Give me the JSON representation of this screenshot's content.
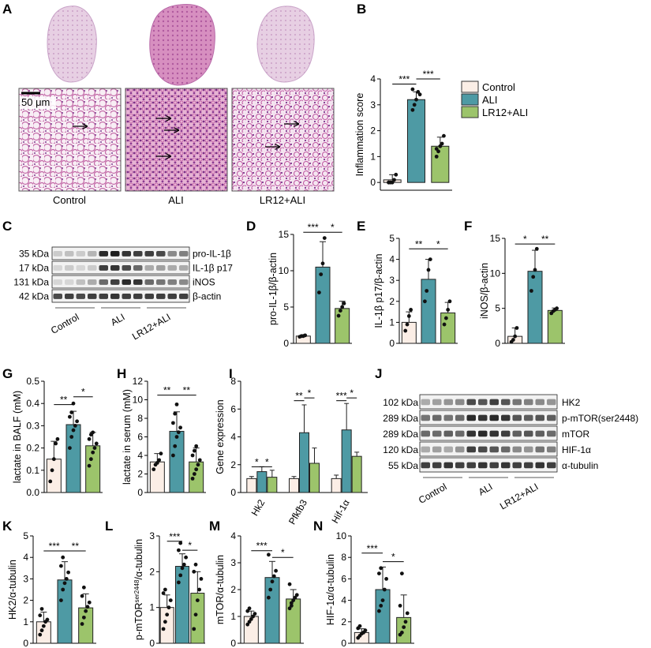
{
  "colors": {
    "control": "#fbeee6",
    "ali": "#4e9aa4",
    "lr12": "#9cc46b",
    "stroke": "#333333"
  },
  "panel_letters": [
    "A",
    "B",
    "C",
    "D",
    "E",
    "F",
    "G",
    "H",
    "I",
    "J",
    "K",
    "L",
    "M",
    "N"
  ],
  "histology": {
    "scale_label": "50 μm",
    "group_labels": [
      "Control",
      "ALI",
      "LR12+ALI"
    ]
  },
  "legend": {
    "items": [
      "Control",
      "ALI",
      "LR12+ALI"
    ]
  },
  "western_c": {
    "kda": [
      "35 kDa",
      "17 kDa",
      "131 kDa",
      "42 kDa"
    ],
    "proteins": [
      "pro-IL-1β",
      "IL-1β p17",
      "iNOS",
      "β-actin"
    ],
    "groups": [
      "Control",
      "ALI",
      "LR12+ALI"
    ]
  },
  "western_j": {
    "kda": [
      "102 kDa",
      "289 kDa",
      "289 kDa",
      "120 kDa",
      "55 kDa"
    ],
    "proteins": [
      "HK2",
      "p-mTOR(ser2448)",
      "mTOR",
      "HIF-1α",
      "α-tubulin"
    ],
    "groups": [
      "Control",
      "ALI",
      "LR12+ALI"
    ]
  },
  "chart_data": [
    {
      "id": "B",
      "type": "bar",
      "ylabel": "Inflammation score",
      "ylim": [
        -0.3,
        4
      ],
      "ticks": [
        0,
        1,
        2,
        3,
        4
      ],
      "categories": [
        "Control",
        "ALI",
        "LR12+ALI"
      ],
      "values": [
        0.1,
        3.2,
        1.4
      ],
      "errors": [
        0.2,
        0.3,
        0.35
      ],
      "points": [
        [
          0,
          0,
          0,
          0.1,
          0.3,
          0
        ],
        [
          2.8,
          3.0,
          3.2,
          3.5,
          3.4,
          3.6
        ],
        [
          1.0,
          1.2,
          1.4,
          1.5,
          1.8,
          1.3
        ]
      ],
      "significance": [
        {
          "from": 0,
          "to": 1,
          "label": "***",
          "level": 3.8
        },
        {
          "from": 1,
          "to": 2,
          "label": "***",
          "level": 4.0
        }
      ]
    },
    {
      "id": "D",
      "type": "bar",
      "ylabel": "pro-IL-1β/β-actin",
      "ylim": [
        0,
        15
      ],
      "ticks": [
        0,
        5,
        10,
        15
      ],
      "categories": [
        "Control",
        "ALI",
        "LR12+ALI"
      ],
      "values": [
        1.0,
        10.5,
        4.8
      ],
      "errors": [
        0.15,
        3.5,
        1.0
      ],
      "points": [
        [
          0.9,
          1.0,
          1.0,
          1.1
        ],
        [
          7.0,
          9.5,
          11.0,
          14.5
        ],
        [
          3.8,
          4.5,
          5.0,
          5.5
        ]
      ],
      "significance": [
        {
          "from": 0,
          "to": 1,
          "label": "***",
          "level": 15.3
        },
        {
          "from": 1,
          "to": 2,
          "label": "*",
          "level": 15.3
        }
      ]
    },
    {
      "id": "E",
      "type": "bar",
      "ylabel": "IL-1β p17/β-actin",
      "ylim": [
        0,
        5
      ],
      "ticks": [
        0,
        1,
        2,
        3,
        4,
        5
      ],
      "categories": [
        "Control",
        "ALI",
        "LR12+ALI"
      ],
      "values": [
        1.0,
        3.05,
        1.45
      ],
      "errors": [
        0.5,
        0.95,
        0.5
      ],
      "points": [
        [
          0.6,
          0.9,
          1.3,
          1.6
        ],
        [
          2.0,
          2.5,
          3.5,
          4.0
        ],
        [
          0.9,
          1.2,
          1.6,
          2.0
        ]
      ],
      "significance": [
        {
          "from": 0,
          "to": 1,
          "label": "**",
          "level": 4.5
        },
        {
          "from": 1,
          "to": 2,
          "label": "*",
          "level": 4.5
        }
      ]
    },
    {
      "id": "F",
      "type": "bar",
      "ylabel": "iNOS/β-actin",
      "ylim": [
        0,
        15
      ],
      "ticks": [
        0,
        5,
        10,
        15
      ],
      "categories": [
        "Control",
        "ALI",
        "LR12+ALI"
      ],
      "values": [
        1.0,
        10.3,
        4.7
      ],
      "errors": [
        1.2,
        3.0,
        0.35
      ],
      "points": [
        [
          0.2,
          0.5,
          1.0,
          2.2
        ],
        [
          7.5,
          9.5,
          10.5,
          13.5
        ],
        [
          4.3,
          4.6,
          4.8,
          5.0
        ]
      ],
      "significance": [
        {
          "from": 0,
          "to": 1,
          "label": "*",
          "level": 14.2
        },
        {
          "from": 1,
          "to": 2,
          "label": "**",
          "level": 14.2
        }
      ]
    },
    {
      "id": "G",
      "type": "bar",
      "ylabel": "lactate in BALF (mM)",
      "ylim": [
        0,
        0.5
      ],
      "ticks": [
        0.0,
        0.1,
        0.2,
        0.3,
        0.4,
        0.5
      ],
      "categories": [
        "Control",
        "ALI",
        "LR12+ALI"
      ],
      "values": [
        0.15,
        0.305,
        0.21
      ],
      "errors": [
        0.08,
        0.06,
        0.06
      ],
      "points": [
        [
          0.05,
          0.1,
          0.15,
          0.22,
          0.24
        ],
        [
          0.2,
          0.25,
          0.28,
          0.3,
          0.32,
          0.34,
          0.36,
          0.4
        ],
        [
          0.12,
          0.15,
          0.18,
          0.2,
          0.22,
          0.24,
          0.26,
          0.27
        ]
      ],
      "significance": [
        {
          "from": 0,
          "to": 1,
          "label": "**",
          "level": 0.395
        },
        {
          "from": 1,
          "to": 2,
          "label": "*",
          "level": 0.43
        }
      ]
    },
    {
      "id": "H",
      "type": "bar",
      "ylabel": "lactate in serum (mM)",
      "ylim": [
        0,
        12
      ],
      "ticks": [
        0,
        2,
        4,
        6,
        8,
        10,
        12
      ],
      "categories": [
        "Control",
        "ALI",
        "LR12+ALI"
      ],
      "values": [
        3.3,
        6.6,
        3.3
      ],
      "errors": [
        0.9,
        2.1,
        1.5
      ],
      "points": [
        [
          2.5,
          3.0,
          3.2,
          3.5,
          4.2
        ],
        [
          4.0,
          5.0,
          6.0,
          6.5,
          7.0,
          7.5,
          8.5,
          9.5
        ],
        [
          1.5,
          2.0,
          2.5,
          3.0,
          3.5,
          4.0,
          4.5,
          5.0
        ]
      ],
      "significance": [
        {
          "from": 0,
          "to": 1,
          "label": "**",
          "level": 10.5
        },
        {
          "from": 1,
          "to": 2,
          "label": "**",
          "level": 10.5
        }
      ]
    },
    {
      "id": "I",
      "type": "bar",
      "ylabel": "Gene expression",
      "ylim": [
        0,
        8
      ],
      "ticks": [
        0,
        2,
        4,
        6,
        8
      ],
      "categories": [
        "Hk2",
        "Pfkfb3",
        "Hif-1α"
      ],
      "series": [
        {
          "values": [
            1.0,
            1.0,
            1.0
          ],
          "errors": [
            0.15,
            0.15,
            0.25
          ]
        },
        {
          "values": [
            1.5,
            4.3,
            4.5
          ],
          "errors": [
            0.35,
            2.0,
            1.9
          ]
        },
        {
          "values": [
            1.1,
            2.1,
            2.6
          ],
          "errors": [
            0.5,
            1.1,
            0.3
          ]
        }
      ],
      "significance": [
        {
          "group": 0,
          "from": 0,
          "to": 1,
          "label": "*",
          "level": 1.85
        },
        {
          "group": 0,
          "from": 1,
          "to": 2,
          "label": "*",
          "level": 1.85
        },
        {
          "group": 1,
          "from": 0,
          "to": 1,
          "label": "**",
          "level": 6.6
        },
        {
          "group": 1,
          "from": 1,
          "to": 2,
          "label": "*",
          "level": 6.8
        },
        {
          "group": 2,
          "from": 0,
          "to": 1,
          "label": "***",
          "level": 6.6
        },
        {
          "group": 2,
          "from": 1,
          "to": 2,
          "label": "*",
          "level": 6.8
        }
      ]
    },
    {
      "id": "K",
      "type": "bar",
      "ylabel": "HK2/α-tubulin",
      "ylim": [
        0,
        5
      ],
      "ticks": [
        0,
        1,
        2,
        3,
        4,
        5
      ],
      "categories": [
        "Control",
        "ALI",
        "LR12+ALI"
      ],
      "values": [
        1.0,
        2.95,
        1.65
      ],
      "errors": [
        0.45,
        0.85,
        0.65
      ],
      "points": [
        [
          0.4,
          0.6,
          0.8,
          1.0,
          1.1,
          1.3,
          1.6
        ],
        [
          2.0,
          2.5,
          2.8,
          3.0,
          3.3,
          3.6,
          4.0
        ],
        [
          0.9,
          1.2,
          1.5,
          1.7,
          1.9,
          2.2,
          2.6
        ]
      ],
      "significance": [
        {
          "from": 0,
          "to": 1,
          "label": "***",
          "level": 4.3
        },
        {
          "from": 1,
          "to": 2,
          "label": "**",
          "level": 4.3
        }
      ]
    },
    {
      "id": "L",
      "type": "bar",
      "ylabel": "p-mTOR/α-tubulin",
      "ylabel_sup": "ser2448",
      "ylim": [
        0,
        3
      ],
      "ticks": [
        0,
        1,
        2,
        3
      ],
      "categories": [
        "Control",
        "ALI",
        "LR12+ALI"
      ],
      "values": [
        1.0,
        2.15,
        1.4
      ],
      "errors": [
        0.35,
        0.35,
        0.6
      ],
      "points": [
        [
          0.4,
          0.6,
          0.8,
          1.0,
          1.2,
          1.4,
          1.5
        ],
        [
          1.7,
          1.9,
          2.1,
          2.2,
          2.4,
          2.6,
          2.8
        ],
        [
          0.4,
          0.8,
          1.2,
          1.5,
          1.8,
          2.0,
          2.2
        ]
      ],
      "significance": [
        {
          "from": 0,
          "to": 1,
          "label": "***",
          "level": 2.85
        },
        {
          "from": 1,
          "to": 2,
          "label": "*",
          "level": 2.6
        }
      ]
    },
    {
      "id": "M",
      "type": "bar",
      "ylabel": "mTOR/α-tubulin",
      "ylim": [
        0,
        4
      ],
      "ticks": [
        0,
        1,
        2,
        3,
        4
      ],
      "categories": [
        "Control",
        "ALI",
        "LR12+ALI"
      ],
      "values": [
        1.0,
        2.45,
        1.65
      ],
      "errors": [
        0.2,
        0.6,
        0.35
      ],
      "points": [
        [
          0.7,
          0.8,
          0.9,
          1.0,
          1.1,
          1.2,
          1.3
        ],
        [
          1.7,
          2.0,
          2.3,
          2.5,
          2.7,
          3.3
        ],
        [
          1.3,
          1.5,
          1.6,
          1.7,
          1.8,
          2.2,
          1.4
        ]
      ],
      "significance": [
        {
          "from": 0,
          "to": 1,
          "label": "***",
          "level": 3.45
        },
        {
          "from": 1,
          "to": 2,
          "label": "*",
          "level": 3.2
        }
      ]
    },
    {
      "id": "N",
      "type": "bar",
      "ylabel": "HIF-1α/α-tubulin",
      "ylim": [
        0,
        10
      ],
      "ticks": [
        0,
        2,
        4,
        6,
        8,
        10
      ],
      "categories": [
        "Control",
        "ALI",
        "LR12+ALI"
      ],
      "values": [
        1.0,
        5.0,
        2.4
      ],
      "errors": [
        0.35,
        2.1,
        2.1
      ],
      "points": [
        [
          0.5,
          0.7,
          0.9,
          1.0,
          1.2,
          1.4,
          1.6
        ],
        [
          3.0,
          3.5,
          4.0,
          5.0,
          6.0,
          6.5,
          7.0
        ],
        [
          0.8,
          1.0,
          1.5,
          2.0,
          2.8,
          3.5,
          6.5
        ]
      ],
      "significance": [
        {
          "from": 0,
          "to": 1,
          "label": "***",
          "level": 8.4
        },
        {
          "from": 1,
          "to": 2,
          "label": "*",
          "level": 7.6
        }
      ]
    }
  ]
}
